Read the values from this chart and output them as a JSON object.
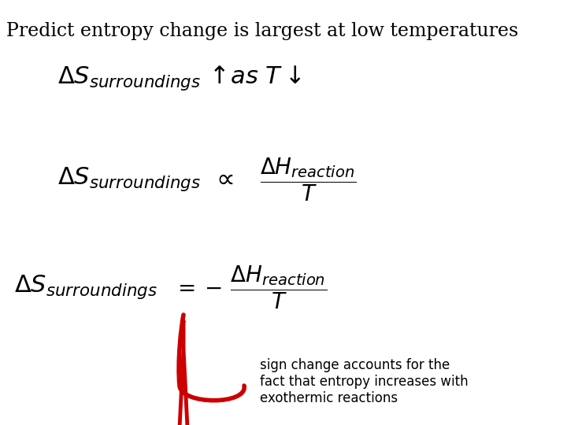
{
  "title": "Predict entropy change is largest at low temperatures",
  "title_fontsize": 17,
  "bg_color": "#ffffff",
  "text_color": "#000000",
  "arrow_color": "#cc0000",
  "annotation_text": "sign change accounts for the\nfact that entropy increases with\nexothermic reactions",
  "annotation_fontsize": 12
}
